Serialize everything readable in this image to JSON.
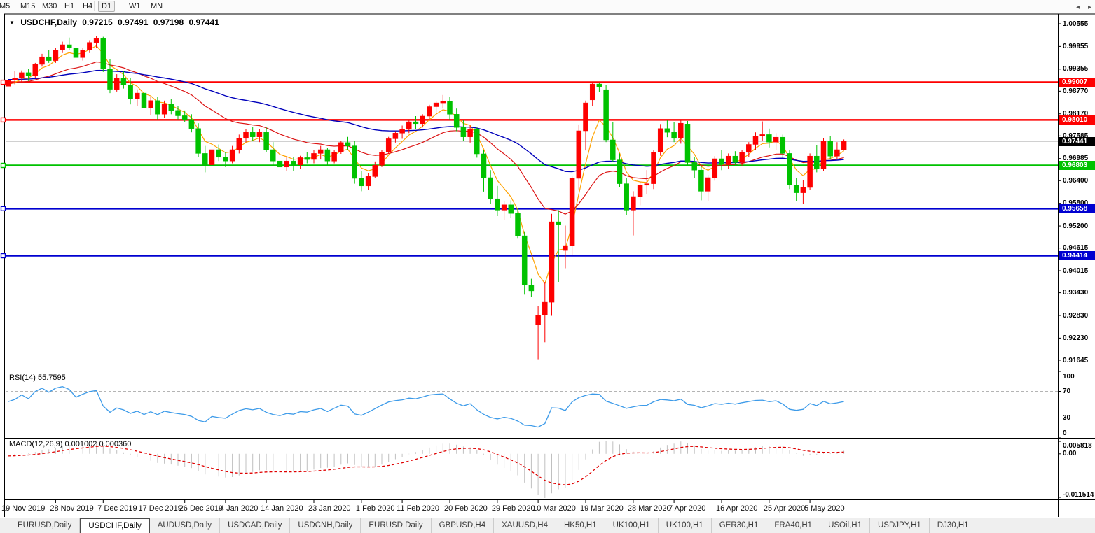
{
  "icons": {
    "collapse": "▼",
    "tab_nav_left": "◂",
    "tab_nav_right": "▸"
  },
  "toolbar": {
    "active": "D1",
    "timeframes": [
      {
        "label": "M5"
      },
      {
        "label": "M15"
      },
      {
        "label": "M30"
      },
      {
        "label": "H1"
      },
      {
        "label": "H4"
      },
      {
        "label": "D1"
      },
      {
        "label": "W1"
      },
      {
        "label": "MN"
      }
    ]
  },
  "chart_data": {
    "type": "candlestick",
    "symbol": "USDCHF,Daily",
    "ohlc": {
      "open": "0.97215",
      "high": "0.97491",
      "low": "0.97198",
      "close": "0.97441"
    },
    "colors": {
      "up": "#fe0000",
      "down": "#00c200",
      "ma_fast": "#ffa200",
      "ma_mid": "#dc1414",
      "ma_slow": "#0000bb",
      "rsi_line": "#3d9be9",
      "macd_hist": "#c0c0c0",
      "macd_signal": "#e00000",
      "current_price_line": "#b4b4b4"
    },
    "y_ticks": [
      "1.00555",
      "0.99955",
      "0.99355",
      "0.98770",
      "0.98170",
      "0.97585",
      "0.96985",
      "0.96400",
      "0.95800",
      "0.95200",
      "0.94615",
      "0.94015",
      "0.93430",
      "0.92830",
      "0.92230",
      "0.91645"
    ],
    "hlines": [
      {
        "value": "0.99007",
        "price": 0.99007,
        "color": "#fe0000"
      },
      {
        "value": "0.98010",
        "price": 0.9801,
        "color": "#fe0000"
      },
      {
        "value": "0.96803",
        "price": 0.96803,
        "color": "#00c200"
      },
      {
        "value": "0.95658",
        "price": 0.95658,
        "color": "#0000d0"
      },
      {
        "value": "0.94414",
        "price": 0.94414,
        "color": "#0000d0"
      }
    ],
    "current_price": {
      "value": "0.97441",
      "price": 0.97441,
      "badge_color": "#000000"
    },
    "moving_averages": [
      {
        "name": "ma-fast",
        "period": 5,
        "color": "#ffa200"
      },
      {
        "name": "ma-mid",
        "period": 21,
        "color": "#dc1414"
      },
      {
        "name": "ma-slow",
        "period": 55,
        "color": "#0000bb"
      }
    ],
    "x_labels": [
      {
        "label": "19 Nov 2019",
        "i": 0
      },
      {
        "label": "28 Nov 2019",
        "i": 7
      },
      {
        "label": "7 Dec 2019",
        "i": 14
      },
      {
        "label": "17 Dec 2019",
        "i": 20
      },
      {
        "label": "26 Dec 2019",
        "i": 26
      },
      {
        "label": "4 Jan 2020",
        "i": 32
      },
      {
        "label": "14 Jan 2020",
        "i": 38
      },
      {
        "label": "23 Jan 2020",
        "i": 45
      },
      {
        "label": "1 Feb 2020",
        "i": 52
      },
      {
        "label": "11 Feb 2020",
        "i": 58
      },
      {
        "label": "20 Feb 2020",
        "i": 65
      },
      {
        "label": "29 Feb 2020",
        "i": 72
      },
      {
        "label": "10 Mar 2020",
        "i": 78
      },
      {
        "label": "19 Mar 2020",
        "i": 85
      },
      {
        "label": "28 Mar 2020",
        "i": 92
      },
      {
        "label": "7 Apr 2020",
        "i": 98
      },
      {
        "label": "16 Apr 2020",
        "i": 105
      },
      {
        "label": "25 Apr 2020",
        "i": 112
      },
      {
        "label": "5 May 2020",
        "i": 118
      }
    ],
    "candles": [
      [
        0.989,
        0.9918,
        0.9882,
        0.9906
      ],
      [
        0.9906,
        0.993,
        0.9895,
        0.9912
      ],
      [
        0.9912,
        0.9932,
        0.9898,
        0.9926
      ],
      [
        0.9926,
        0.9936,
        0.9904,
        0.9918
      ],
      [
        0.9918,
        0.9952,
        0.9912,
        0.9948
      ],
      [
        0.9948,
        0.9976,
        0.9942,
        0.9968
      ],
      [
        0.9968,
        0.9986,
        0.9952,
        0.9958
      ],
      [
        0.9958,
        0.9992,
        0.9952,
        0.9986
      ],
      [
        0.9986,
        1.0008,
        0.9978,
        1.0
      ],
      [
        1.0,
        1.0019,
        0.9986,
        0.9992
      ],
      [
        0.9992,
        1.0002,
        0.9958,
        0.9966
      ],
      [
        0.9966,
        0.9992,
        0.9958,
        0.9986
      ],
      [
        0.9986,
        1.0012,
        0.9978,
        1.0006
      ],
      [
        1.0006,
        1.0023,
        0.9992,
        1.0016
      ],
      [
        1.0016,
        1.0021,
        0.9928,
        0.9936
      ],
      [
        0.9936,
        0.9962,
        0.9872,
        0.9882
      ],
      [
        0.9882,
        0.9922,
        0.9876,
        0.9912
      ],
      [
        0.9912,
        0.9931,
        0.9884,
        0.9894
      ],
      [
        0.9894,
        0.9912,
        0.9842,
        0.9856
      ],
      [
        0.9856,
        0.9882,
        0.9838,
        0.9872
      ],
      [
        0.9872,
        0.9886,
        0.9822,
        0.9832
      ],
      [
        0.9832,
        0.9862,
        0.9814,
        0.9852
      ],
      [
        0.9852,
        0.9862,
        0.9802,
        0.9816
      ],
      [
        0.9816,
        0.9852,
        0.9806,
        0.9842
      ],
      [
        0.9842,
        0.9856,
        0.9816,
        0.9826
      ],
      [
        0.9826,
        0.9838,
        0.9802,
        0.9812
      ],
      [
        0.9812,
        0.9826,
        0.9796,
        0.9802
      ],
      [
        0.9802,
        0.9816,
        0.9768,
        0.9778
      ],
      [
        0.9778,
        0.9792,
        0.9702,
        0.9712
      ],
      [
        0.9712,
        0.9732,
        0.9662,
        0.9682
      ],
      [
        0.9682,
        0.9732,
        0.9672,
        0.9722
      ],
      [
        0.9722,
        0.9736,
        0.9692,
        0.9702
      ],
      [
        0.9702,
        0.9716,
        0.9676,
        0.9692
      ],
      [
        0.9692,
        0.9732,
        0.9686,
        0.9722
      ],
      [
        0.9722,
        0.9762,
        0.9712,
        0.9752
      ],
      [
        0.9752,
        0.9776,
        0.9742,
        0.9768
      ],
      [
        0.9768,
        0.9782,
        0.9746,
        0.9756
      ],
      [
        0.9756,
        0.9776,
        0.9742,
        0.9768
      ],
      [
        0.9768,
        0.9781,
        0.9716,
        0.9722
      ],
      [
        0.9722,
        0.9742,
        0.9682,
        0.9692
      ],
      [
        0.9692,
        0.9712,
        0.9662,
        0.9676
      ],
      [
        0.9676,
        0.9702,
        0.9666,
        0.9692
      ],
      [
        0.9692,
        0.9702,
        0.9666,
        0.9682
      ],
      [
        0.9682,
        0.9706,
        0.9672,
        0.9701
      ],
      [
        0.9701,
        0.9716,
        0.9686,
        0.9696
      ],
      [
        0.9696,
        0.9722,
        0.9686,
        0.9712
      ],
      [
        0.9712,
        0.9732,
        0.9696,
        0.9722
      ],
      [
        0.9722,
        0.9727,
        0.9682,
        0.9692
      ],
      [
        0.9692,
        0.9722,
        0.9686,
        0.9716
      ],
      [
        0.9716,
        0.9746,
        0.9711,
        0.9741
      ],
      [
        0.9741,
        0.9756,
        0.9722,
        0.9732
      ],
      [
        0.9732,
        0.9746,
        0.9632,
        0.9646
      ],
      [
        0.9646,
        0.9666,
        0.9612,
        0.9626
      ],
      [
        0.9626,
        0.9661,
        0.9616,
        0.9651
      ],
      [
        0.9651,
        0.9691,
        0.9646,
        0.9681
      ],
      [
        0.9681,
        0.9721,
        0.9676,
        0.9716
      ],
      [
        0.9716,
        0.9756,
        0.9711,
        0.9751
      ],
      [
        0.9751,
        0.9771,
        0.9741,
        0.9766
      ],
      [
        0.9766,
        0.9786,
        0.9751,
        0.9776
      ],
      [
        0.9776,
        0.9801,
        0.9766,
        0.9796
      ],
      [
        0.9796,
        0.9811,
        0.9776,
        0.9791
      ],
      [
        0.9791,
        0.9816,
        0.9781,
        0.9811
      ],
      [
        0.9811,
        0.9841,
        0.9801,
        0.9836
      ],
      [
        0.9836,
        0.9851,
        0.9821,
        0.9846
      ],
      [
        0.9846,
        0.9867,
        0.9831,
        0.9851
      ],
      [
        0.9851,
        0.9861,
        0.9801,
        0.9816
      ],
      [
        0.9816,
        0.9831,
        0.9771,
        0.9781
      ],
      [
        0.9781,
        0.9801,
        0.9746,
        0.9756
      ],
      [
        0.9756,
        0.9786,
        0.9741,
        0.9776
      ],
      [
        0.9776,
        0.9781,
        0.9701,
        0.9711
      ],
      [
        0.9711,
        0.9721,
        0.9611,
        0.9648
      ],
      [
        0.9648,
        0.9668,
        0.9578,
        0.9592
      ],
      [
        0.9592,
        0.9626,
        0.9546,
        0.9562
      ],
      [
        0.9562,
        0.9586,
        0.9536,
        0.9576
      ],
      [
        0.9576,
        0.9588,
        0.9542,
        0.9553
      ],
      [
        0.9553,
        0.9568,
        0.9488,
        0.9494
      ],
      [
        0.9494,
        0.9506,
        0.9338,
        0.9364
      ],
      [
        0.9364,
        0.938,
        0.9332,
        0.9348
      ],
      [
        0.9258,
        0.9308,
        0.9167,
        0.9284
      ],
      [
        0.9284,
        0.9372,
        0.9212,
        0.9318
      ],
      [
        0.9318,
        0.9552,
        0.9282,
        0.9531
      ],
      [
        0.9531,
        0.9562,
        0.9372,
        0.9524
      ],
      [
        0.9455,
        0.9521,
        0.9408,
        0.9468
      ],
      [
        0.9468,
        0.9651,
        0.9442,
        0.9646
      ],
      [
        0.9646,
        0.9789,
        0.9617,
        0.9772
      ],
      [
        0.9772,
        0.9852,
        0.972,
        0.9846
      ],
      [
        0.9854,
        0.9901,
        0.9838,
        0.9896
      ],
      [
        0.9896,
        0.99,
        0.9875,
        0.9889
      ],
      [
        0.9881,
        0.9893,
        0.9742,
        0.9748
      ],
      [
        0.9748,
        0.9796,
        0.9689,
        0.9695
      ],
      [
        0.9695,
        0.9712,
        0.9622,
        0.9632
      ],
      [
        0.9632,
        0.9648,
        0.9548,
        0.9562
      ],
      [
        0.9562,
        0.9612,
        0.9495,
        0.9598
      ],
      [
        0.9598,
        0.9638,
        0.9575,
        0.9628
      ],
      [
        0.9628,
        0.9668,
        0.9605,
        0.9632
      ],
      [
        0.9632,
        0.9722,
        0.9618,
        0.9716
      ],
      [
        0.9716,
        0.979,
        0.9706,
        0.9778
      ],
      [
        0.9778,
        0.98,
        0.9755,
        0.9768
      ],
      [
        0.9768,
        0.9795,
        0.9742,
        0.9752
      ],
      [
        0.9752,
        0.98,
        0.9738,
        0.9792
      ],
      [
        0.979,
        0.9798,
        0.968,
        0.9688
      ],
      [
        0.9688,
        0.9702,
        0.9648,
        0.9668
      ],
      [
        0.9668,
        0.968,
        0.9588,
        0.9612
      ],
      [
        0.9612,
        0.9655,
        0.9585,
        0.9648
      ],
      [
        0.9648,
        0.9705,
        0.964,
        0.9698
      ],
      [
        0.9698,
        0.9722,
        0.9668,
        0.9683
      ],
      [
        0.9683,
        0.9712,
        0.9672,
        0.9705
      ],
      [
        0.9705,
        0.9718,
        0.9678,
        0.9688
      ],
      [
        0.9688,
        0.9722,
        0.968,
        0.9715
      ],
      [
        0.9715,
        0.9742,
        0.9702,
        0.9736
      ],
      [
        0.9736,
        0.9768,
        0.9722,
        0.9758
      ],
      [
        0.9758,
        0.9797,
        0.9745,
        0.9762
      ],
      [
        0.9762,
        0.9778,
        0.9728,
        0.9742
      ],
      [
        0.9742,
        0.9766,
        0.9722,
        0.9755
      ],
      [
        0.9755,
        0.9762,
        0.97,
        0.9712
      ],
      [
        0.9712,
        0.9722,
        0.9618,
        0.9628
      ],
      [
        0.9628,
        0.9648,
        0.9586,
        0.9608
      ],
      [
        0.9608,
        0.9642,
        0.9578,
        0.9622
      ],
      [
        0.9622,
        0.9712,
        0.9615,
        0.9705
      ],
      [
        0.9705,
        0.9735,
        0.9662,
        0.9672
      ],
      [
        0.9672,
        0.9752,
        0.9665,
        0.9745
      ],
      [
        0.9745,
        0.9758,
        0.9697,
        0.9705
      ],
      [
        0.9705,
        0.9742,
        0.9697,
        0.9722
      ],
      [
        0.97215,
        0.97491,
        0.97198,
        0.97441
      ]
    ],
    "rsi": {
      "name": "RSI(14)",
      "value": "55.7595",
      "period": 14,
      "levels": [
        "100",
        "70",
        "30",
        "0"
      ],
      "level_values": [
        100,
        70,
        30,
        0
      ]
    },
    "macd": {
      "name": "MACD(12,26,9)",
      "value_main": "0.001002",
      "value_signal": "0.000360",
      "fast": 12,
      "slow": 26,
      "signal": 9,
      "levels": {
        "top": "0.005818",
        "zero": "0.00",
        "bottom": "-0.011514"
      }
    }
  },
  "tabs": {
    "items": [
      {
        "label": "EURUSD,Daily",
        "active": false
      },
      {
        "label": "USDCHF,Daily",
        "active": true
      },
      {
        "label": "AUDUSD,Daily",
        "active": false
      },
      {
        "label": "USDCAD,Daily",
        "active": false
      },
      {
        "label": "USDCNH,Daily",
        "active": false
      },
      {
        "label": "EURUSD,Daily",
        "active": false
      },
      {
        "label": "GBPUSD,H4",
        "active": false
      },
      {
        "label": "XAUUSD,H4",
        "active": false
      },
      {
        "label": "HK50,H1",
        "active": false
      },
      {
        "label": "UK100,H1",
        "active": false
      },
      {
        "label": "UK100,H1",
        "active": false
      },
      {
        "label": "GER30,H1",
        "active": false
      },
      {
        "label": "FRA40,H1",
        "active": false
      },
      {
        "label": "USOil,H1",
        "active": false
      },
      {
        "label": "USDJPY,H1",
        "active": false
      },
      {
        "label": "DJ30,H1",
        "active": false
      }
    ]
  }
}
